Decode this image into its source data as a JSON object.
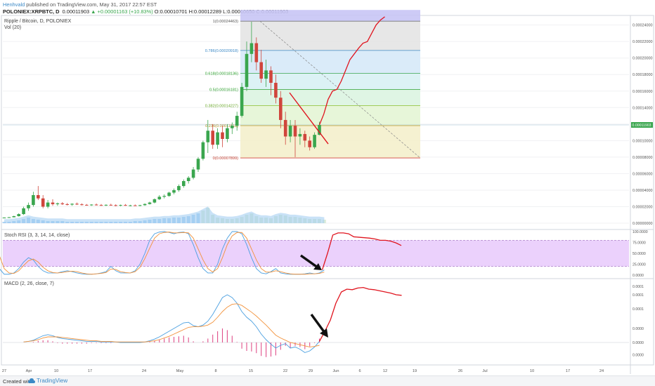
{
  "header": {
    "author": "Henhvald",
    "published": "published on TradingView.com, May 31, 2017 22:57 EST",
    "symbol": "POLONIEX:XRPBTC, D",
    "price": "0.00011903",
    "change": "▲ +0.00001163 (+10.83%)",
    "ohlc": "O:0.00010701 H:0.00012289 L:0.00010650 C:0.00011903"
  },
  "main_pane": {
    "title": "Ripple / Bitcoin, D, POLONIEX",
    "vol_label": "Vol (20)",
    "price_badge": "0.00011903"
  },
  "stoch_pane": {
    "title": "Stoch RSI (3, 3, 14, 14, close)"
  },
  "macd_pane": {
    "title": "MACD (2, 26, close, 7)"
  },
  "footer": {
    "created": "Created with",
    "brand": "TradingView"
  },
  "colors": {
    "up": "#3aa64e",
    "down": "#d0453c",
    "projection": "#e0141e",
    "stoch_band": "#e7c9fb",
    "macd_line": "#4a9fe0",
    "signal_line": "#f2923b",
    "volume": "#9ccbf0"
  },
  "chart_data": [
    {
      "type": "candlestick",
      "title": "Ripple / Bitcoin, D, POLONIEX",
      "y_ticks": [
        "0.00024000",
        "0.00022000",
        "0.00020000",
        "0.00018000",
        "0.00016000",
        "0.00014000",
        "0.00012000",
        "0.00010000",
        "0.00008000",
        "0.00006000",
        "0.00004000",
        "0.00002000",
        "0.00000000"
      ],
      "ylim": [
        0,
        0.000255
      ],
      "x_ticks": [
        "27",
        "Apr",
        "10",
        "17",
        "24",
        "May",
        "8",
        "15",
        "22",
        "29",
        "Jun",
        "6",
        "12",
        "19",
        "26",
        "Jul",
        "10",
        "17",
        "24"
      ],
      "fib_levels": [
        {
          "label": "1(0.00024463)",
          "value": 0.00024463
        },
        {
          "label": "0.786(0.00020918)",
          "value": 0.00020918
        },
        {
          "label": "0.618(0.00018136)",
          "value": 0.00018136
        },
        {
          "label": "0.5(0.00016181)",
          "value": 0.00016181
        },
        {
          "label": "0.382(0.00014227)",
          "value": 0.00014227
        },
        {
          "label": "0.236(0.00011818)",
          "value": 0.00011818
        },
        {
          "label": "0(0.00007899)",
          "value": 7.899e-05
        }
      ],
      "candles": [
        [
          6.5e-06,
          7e-06,
          6e-06,
          6.8e-06
        ],
        [
          6.8e-06,
          7.5e-06,
          6.5e-06,
          7.2e-06
        ],
        [
          7.2e-06,
          9e-06,
          7e-06,
          8.5e-06
        ],
        [
          8.5e-06,
          1.2e-05,
          8e-06,
          1.1e-05
        ],
        [
          1.1e-05,
          2e-05,
          1e-05,
          1.8e-05
        ],
        [
          1.8e-05,
          2.5e-05,
          1.5e-05,
          2.2e-05
        ],
        [
          2.2e-05,
          3.8e-05,
          2e-05,
          3.4e-05
        ],
        [
          3.4e-05,
          4.5e-05,
          2.8e-05,
          3e-05
        ],
        [
          3e-05,
          3.4e-05,
          1.8e-05,
          2e-05
        ],
        [
          2e-05,
          2.8e-05,
          1.8e-05,
          2.5e-05
        ],
        [
          2.5e-05,
          2.9e-05,
          2.1e-05,
          2.3e-05
        ],
        [
          2.3e-05,
          2.5e-05,
          2.1e-05,
          2.4e-05
        ],
        [
          2.4e-05,
          2.55e-05,
          2.2e-05,
          2.3e-05
        ],
        [
          2.3e-05,
          2.45e-05,
          2.15e-05,
          2.25e-05
        ],
        [
          2.25e-05,
          2.4e-05,
          2.1e-05,
          2.35e-05
        ],
        [
          2.35e-05,
          2.5e-05,
          2.2e-05,
          2.28e-05
        ],
        [
          2.28e-05,
          2.4e-05,
          2.15e-05,
          2.22e-05
        ],
        [
          2.22e-05,
          2.32e-05,
          2.12e-05,
          2.18e-05
        ],
        [
          2.18e-05,
          2.3e-05,
          2.1e-05,
          2.25e-05
        ],
        [
          2.25e-05,
          2.38e-05,
          2.15e-05,
          2.2e-05
        ],
        [
          2.2e-05,
          2.32e-05,
          2.1e-05,
          2.15e-05
        ],
        [
          2.15e-05,
          2.28e-05,
          2.08e-05,
          2.22e-05
        ],
        [
          2.22e-05,
          2.35e-05,
          2.12e-05,
          2.18e-05
        ],
        [
          2.18e-05,
          2.28e-05,
          2.05e-05,
          2.12e-05
        ],
        [
          2.12e-05,
          2.25e-05,
          2.05e-05,
          2.2e-05
        ],
        [
          2.2e-05,
          2.32e-05,
          2.1e-05,
          2.14e-05
        ],
        [
          2.14e-05,
          2.22e-05,
          2.05e-05,
          2.16e-05
        ],
        [
          2.16e-05,
          2.26e-05,
          2.08e-05,
          2.12e-05
        ],
        [
          2.12e-05,
          2.22e-05,
          2.05e-05,
          2.18e-05
        ],
        [
          2.18e-05,
          2.4e-05,
          2.1e-05,
          2.32e-05
        ],
        [
          2.32e-05,
          2.6e-05,
          2.25e-05,
          2.5e-05
        ],
        [
          2.5e-05,
          3e-05,
          2.4e-05,
          2.9e-05
        ],
        [
          2.9e-05,
          3.4e-05,
          2.8e-05,
          3.2e-05
        ],
        [
          3.2e-05,
          3.5e-05,
          3e-05,
          3.3e-05
        ],
        [
          3.3e-05,
          3.8e-05,
          3.2e-05,
          3.7e-05
        ],
        [
          3.7e-05,
          4.2e-05,
          3.5e-05,
          4e-05
        ],
        [
          4e-05,
          4.7e-05,
          3.8e-05,
          4.5e-05
        ],
        [
          4.5e-05,
          5.3e-05,
          4.3e-05,
          5.1e-05
        ],
        [
          5.1e-05,
          5.7e-05,
          4.8e-05,
          5.5e-05
        ],
        [
          5.5e-05,
          6.8e-05,
          5.3e-05,
          6.5e-05
        ],
        [
          6.5e-05,
          8e-05,
          6.2e-05,
          7.8e-05
        ],
        [
          7.8e-05,
          0.0001,
          7.6e-05,
          9.8e-05
        ],
        [
          9.8e-05,
          0.000125,
          8.5e-05,
          0.000112
        ],
        [
          0.000112,
          0.00012,
          9e-05,
          9.5e-05
        ],
        [
          9.5e-05,
          0.000115,
          9e-05,
          0.00011
        ],
        [
          0.00011,
          0.000118,
          9.2e-05,
          0.000102
        ],
        [
          0.000102,
          0.00012,
          9.8e-05,
          0.000115
        ],
        [
          0.000115,
          0.000122,
          0.000108,
          0.000118
        ],
        [
          0.000118,
          0.000135,
          0.000112,
          0.00013
        ],
        [
          0.00013,
          0.00017,
          0.000128,
          0.000165
        ],
        [
          0.000165,
          0.00022,
          0.00016,
          0.000205
        ],
        [
          0.000205,
          0.000244,
          0.000195,
          0.000218
        ],
        [
          0.000218,
          0.000225,
          0.000185,
          0.000195
        ],
        [
          0.000195,
          0.00021,
          0.00017,
          0.000175
        ],
        [
          0.000175,
          0.000198,
          0.000165,
          0.000185
        ],
        [
          0.000185,
          0.00019,
          0.000155,
          0.00017
        ],
        [
          0.00017,
          0.00018,
          0.000145,
          0.000152
        ],
        [
          0.000152,
          0.00016,
          0.000115,
          0.000125
        ],
        [
          0.000125,
          0.000135,
          9.5e-05,
          0.000105
        ],
        [
          0.000105,
          0.000125,
          9.8e-05,
          0.000118
        ],
        [
          0.000118,
          0.000125,
          8e-05,
          0.000105
        ],
        [
          0.000105,
          0.000115,
          9.5e-05,
          0.000108
        ],
        [
          0.000108,
          0.000112,
          9.2e-05,
          0.0001
        ],
        [
          0.0001,
          0.000105,
          8.8e-05,
          9.2e-05
        ],
        [
          9.2e-05,
          0.00011,
          9e-05,
          0.000107
        ],
        [
          0.000107,
          0.0001229,
          0.0001065,
          0.000119
        ]
      ],
      "projection": [
        [
          0.000119
        ],
        [
          0.000132
        ],
        [
          0.00015
        ],
        [
          0.00016
        ],
        [
          0.000162
        ],
        [
          0.000172
        ],
        [
          0.000185
        ],
        [
          0.000198
        ],
        [
          0.000205
        ],
        [
          0.000212
        ],
        [
          0.000218
        ],
        [
          0.00022
        ],
        [
          0.00023
        ],
        [
          0.00024
        ],
        [
          0.000246
        ],
        [
          0.00025
        ]
      ]
    },
    {
      "type": "line",
      "title": "Stoch RSI (3, 3, 14, 14, close)",
      "y_ticks": [
        "100.0000",
        "75.0000",
        "50.0000",
        "25.0000",
        "0.0000"
      ],
      "ylim": [
        0,
        100
      ],
      "band": [
        20,
        80
      ],
      "series": [
        {
          "values": [
            40,
            55,
            75,
            90,
            98,
            95,
            60,
            15,
            2,
            2,
            5,
            15,
            30,
            40,
            35,
            20,
            10,
            5,
            5,
            5,
            8,
            10,
            8,
            5,
            3,
            2,
            2,
            3,
            5,
            8,
            20,
            10,
            5,
            5,
            5,
            10,
            25,
            50,
            80,
            95,
            99,
            100,
            98,
            95,
            98,
            99,
            95,
            70,
            40,
            15,
            5,
            5,
            25,
            60,
            85,
            100,
            100,
            95,
            70,
            40,
            15,
            5,
            3,
            8,
            15,
            5,
            3,
            2,
            2,
            2,
            3,
            5,
            3,
            5,
            12
          ]
        },
        {
          "values": [
            30,
            45,
            65,
            82,
            92,
            94,
            80,
            45,
            15,
            5,
            4,
            10,
            22,
            33,
            37,
            30,
            18,
            10,
            6,
            5,
            6,
            8,
            9,
            8,
            5,
            3,
            2,
            3,
            4,
            6,
            14,
            13,
            8,
            6,
            5,
            8,
            18,
            38,
            62,
            85,
            95,
            98,
            99,
            97,
            97,
            98,
            97,
            85,
            60,
            35,
            15,
            7,
            15,
            40,
            70,
            90,
            98,
            98,
            85,
            60,
            35,
            15,
            7,
            7,
            10,
            8,
            5,
            3,
            2,
            2,
            2,
            3,
            3,
            4,
            7
          ]
        }
      ],
      "projection": [
        12,
        50,
        92,
        97,
        97,
        95,
        88,
        87,
        86,
        85,
        83,
        80,
        80,
        78,
        74,
        68
      ]
    },
    {
      "type": "line",
      "title": "MACD (2, 26, close, 7)",
      "y_ticks": [
        "0.0001",
        "0.0001",
        "0.0001",
        "0.0000",
        "0.0000",
        "0.0000"
      ],
      "ylim": [
        -2.5e-05,
        0.000105
      ],
      "series": [
        {
          "values": [
            1e-06,
            2e-06,
            4e-06,
            8e-06,
            1.2e-05,
            1.4e-05,
            1.2e-05,
            9e-06,
            7e-06,
            6e-06,
            5e-06,
            4e-06,
            3e-06,
            2e-06,
            2e-06,
            2e-06,
            1e-06,
            1e-06,
            1e-06,
            1e-06,
            0.0,
            0.0,
            0.0,
            0.0,
            0.0,
            1e-06,
            3e-06,
            6e-06,
            1e-05,
            1.5e-05,
            2e-05,
            2.5e-05,
            3e-05,
            3.5e-05,
            3.6e-05,
            3e-05,
            2.8e-05,
            3.1e-05,
            3.8e-05,
            5e-05,
            6.5e-05,
            8e-05,
            8.5e-05,
            8e-05,
            7e-05,
            5.5e-05,
            4.5e-05,
            3.8e-05,
            2.8e-05,
            1.5e-05,
            5e-06,
            -3e-06,
            -1e-05,
            -5e-06,
            -2e-06,
            -1e-05,
            -8e-06,
            -1.2e-05,
            -1.8e-05,
            -1.5e-05,
            -8e-06,
            2e-06
          ]
        },
        {
          "values": [
            1e-06,
            2e-06,
            3e-06,
            5e-06,
            8e-06,
            1e-05,
            1e-05,
            1e-05,
            9e-06,
            8e-06,
            7e-06,
            6e-06,
            5e-06,
            4e-06,
            3e-06,
            3e-06,
            2e-06,
            2e-06,
            2e-06,
            1e-06,
            1e-06,
            1e-06,
            1e-06,
            1e-06,
            1e-06,
            1e-06,
            2e-06,
            3e-06,
            5e-06,
            8e-06,
            1.1e-05,
            1.5e-05,
            1.9e-05,
            2.3e-05,
            2.7e-05,
            2.8e-05,
            2.8e-05,
            2.9e-05,
            3.1e-05,
            3.6e-05,
            4.5e-05,
            5.5e-05,
            6.3e-05,
            6.8e-05,
            6.9e-05,
            6.6e-05,
            6e-05,
            5.4e-05,
            4.7e-05,
            3.9e-05,
            3.1e-05,
            2.2e-05,
            1.3e-05,
            8e-06,
            4e-06,
            0.0,
            -2e-06,
            -4e-06,
            -6e-06,
            -8e-06,
            -7e-06,
            -5e-06
          ]
        }
      ],
      "histogram": [
        0,
        0,
        1e-06,
        3e-06,
        4e-06,
        4e-06,
        2e-06,
        -1e-06,
        -2e-06,
        -2e-06,
        -2e-06,
        -2e-06,
        -2e-06,
        -2e-06,
        -1e-06,
        -1e-06,
        -1e-06,
        -1e-06,
        -1e-06,
        0,
        0,
        0,
        0,
        0,
        0,
        0,
        1e-06,
        3e-06,
        5e-06,
        7e-06,
        9e-06,
        1e-05,
        1.1e-05,
        1.2e-05,
        9e-06,
        2e-06,
        0,
        2e-06,
        7e-06,
        1.4e-05,
        2e-05,
        2.5e-05,
        2.2e-05,
        1.2e-05,
        1e-06,
        -1.1e-05,
        -1.5e-05,
        -1.6e-05,
        -1.9e-05,
        -2.4e-05,
        -2.6e-05,
        -2.5e-05,
        -2.3e-05,
        -1.3e-05,
        -6e-06,
        -1e-05,
        -6e-06,
        -8e-06,
        -1.2e-05,
        -7e-06,
        -1e-06,
        7e-06
      ],
      "projection": [
        2e-06,
        2e-05,
        4e-05,
        7e-05,
        9e-05,
        9.5e-05,
        9.4e-05,
        9.7e-05,
        9.8e-05,
        9.5e-05,
        9.4e-05,
        9.2e-05,
        9e-05,
        8.8e-05,
        8.5e-05,
        8.4e-05
      ]
    }
  ]
}
